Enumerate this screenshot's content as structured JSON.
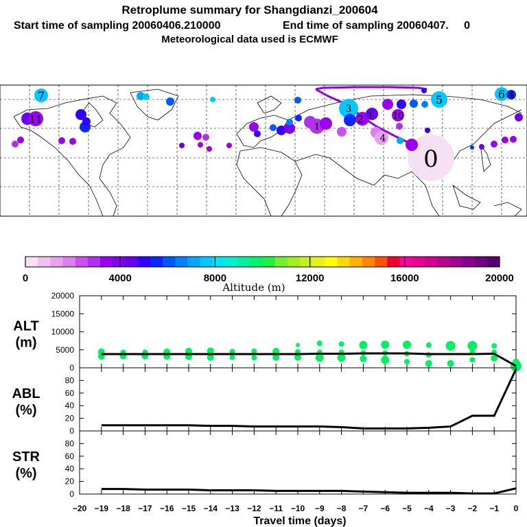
{
  "header": {
    "title": "Retroplume summary for Shangdianzi_200604",
    "line2_start": "Start time of sampling 20060406.210000",
    "line2_end": "End time of sampling 20060407.     0",
    "line3": "Meteorological data used is ECMWF"
  },
  "colorbar": {
    "label": "Altitude (m)",
    "ticks": [
      "0",
      "4000",
      "8000",
      "12000",
      "16000",
      "20000"
    ],
    "colors": [
      "#f7e0f7",
      "#f0c0f0",
      "#e8a0f0",
      "#dc80f0",
      "#cc50f0",
      "#b030f0",
      "#9a00f0",
      "#8000f0",
      "#6a00f0",
      "#3200ff",
      "#0a28ff",
      "#0058ff",
      "#0080ff",
      "#00a8ff",
      "#00c8ff",
      "#00e6f0",
      "#00f0d0",
      "#00f0a0",
      "#00f070",
      "#20f040",
      "#70f030",
      "#a0f020",
      "#c8f020",
      "#e8f020",
      "#ffff00",
      "#ffd800",
      "#ffb000",
      "#ff8800",
      "#ff5000",
      "#f00030",
      "#ff00a0",
      "#e80090",
      "#d00090",
      "#b80090",
      "#a00090",
      "#880090",
      "#700080",
      "#580070"
    ]
  },
  "map": {
    "labels": [
      "7",
      "6",
      "4",
      "5",
      "2",
      "3",
      "10",
      "1",
      "4",
      "0",
      "1",
      "11"
    ]
  },
  "chart_data": [
    {
      "type": "scatter",
      "panel": "ALT",
      "ylabel_lines": [
        "ALT",
        "(m)"
      ],
      "ylim": [
        0,
        20000
      ],
      "yticks": [
        "20000",
        "15000",
        "10000",
        "5000",
        "0"
      ],
      "median_line": {
        "x": [
          -19,
          -18,
          -17,
          -16,
          -15,
          -14,
          -13,
          -12,
          -11,
          -10,
          -9,
          -8,
          -7,
          -6,
          -5,
          -4,
          -3,
          -2,
          -1,
          0
        ],
        "y": [
          3800,
          3800,
          3800,
          3800,
          3800,
          3800,
          3800,
          3800,
          3800,
          3800,
          3900,
          3900,
          4000,
          4000,
          4000,
          3800,
          3800,
          3800,
          3900,
          500
        ]
      },
      "points": [
        {
          "x": -19,
          "y": 3200,
          "s": 5
        },
        {
          "x": -19,
          "y": 4400,
          "s": 5
        },
        {
          "x": -18,
          "y": 3300,
          "s": 5
        },
        {
          "x": -18,
          "y": 4300,
          "s": 4
        },
        {
          "x": -17,
          "y": 3300,
          "s": 5
        },
        {
          "x": -17,
          "y": 4300,
          "s": 4
        },
        {
          "x": -16,
          "y": 3200,
          "s": 5
        },
        {
          "x": -16,
          "y": 4400,
          "s": 5
        },
        {
          "x": -15,
          "y": 3100,
          "s": 5
        },
        {
          "x": -15,
          "y": 4600,
          "s": 5
        },
        {
          "x": -14,
          "y": 2900,
          "s": 5
        },
        {
          "x": -14,
          "y": 4700,
          "s": 5
        },
        {
          "x": -13,
          "y": 2900,
          "s": 4
        },
        {
          "x": -13,
          "y": 4500,
          "s": 4
        },
        {
          "x": -12,
          "y": 2800,
          "s": 4
        },
        {
          "x": -12,
          "y": 4600,
          "s": 4
        },
        {
          "x": -11,
          "y": 2900,
          "s": 5
        },
        {
          "x": -11,
          "y": 4600,
          "s": 5
        },
        {
          "x": -10,
          "y": 2900,
          "s": 5
        },
        {
          "x": -10,
          "y": 4400,
          "s": 4
        },
        {
          "x": -10,
          "y": 6300,
          "s": 3
        },
        {
          "x": -9,
          "y": 2800,
          "s": 6
        },
        {
          "x": -9,
          "y": 4300,
          "s": 4
        },
        {
          "x": -9,
          "y": 6800,
          "s": 4
        },
        {
          "x": -8,
          "y": 2800,
          "s": 6
        },
        {
          "x": -8,
          "y": 4300,
          "s": 4
        },
        {
          "x": -8,
          "y": 6600,
          "s": 4
        },
        {
          "x": -7,
          "y": 2500,
          "s": 5
        },
        {
          "x": -7,
          "y": 4100,
          "s": 4
        },
        {
          "x": -7,
          "y": 6300,
          "s": 6
        },
        {
          "x": -6,
          "y": 2200,
          "s": 6
        },
        {
          "x": -6,
          "y": 4100,
          "s": 4
        },
        {
          "x": -6,
          "y": 6400,
          "s": 6
        },
        {
          "x": -5,
          "y": 1700,
          "s": 4
        },
        {
          "x": -5,
          "y": 3900,
          "s": 4
        },
        {
          "x": -5,
          "y": 6400,
          "s": 6
        },
        {
          "x": -4,
          "y": 1200,
          "s": 5
        },
        {
          "x": -4,
          "y": 3600,
          "s": 4
        },
        {
          "x": -4,
          "y": 6300,
          "s": 4
        },
        {
          "x": -3,
          "y": 1200,
          "s": 5
        },
        {
          "x": -3,
          "y": 6100,
          "s": 7
        },
        {
          "x": -2,
          "y": 2200,
          "s": 4
        },
        {
          "x": -2,
          "y": 4300,
          "s": 4
        },
        {
          "x": -2,
          "y": 6100,
          "s": 7
        },
        {
          "x": -1,
          "y": 2700,
          "s": 5
        },
        {
          "x": -1,
          "y": 4300,
          "s": 4
        },
        {
          "x": -1,
          "y": 6100,
          "s": 4
        },
        {
          "x": 0,
          "y": 500,
          "s": 8
        },
        {
          "x": 0,
          "y": 1600,
          "s": 5
        }
      ]
    },
    {
      "type": "line",
      "panel": "ABL",
      "ylabel_lines": [
        "ABL",
        "(%)"
      ],
      "ylim": [
        0,
        100
      ],
      "yticks": [
        "80",
        "60",
        "40",
        "20",
        "0"
      ],
      "x": [
        -19,
        -18,
        -17,
        -16,
        -15,
        -14,
        -13,
        -12,
        -11,
        -10,
        -9,
        -8,
        -7,
        -6,
        -5,
        -4,
        -3,
        -2,
        -1,
        0
      ],
      "y": [
        9,
        9,
        9,
        9,
        9,
        8,
        8,
        7,
        7,
        7,
        7,
        6,
        4,
        4,
        4,
        5,
        7,
        24,
        24,
        98
      ]
    },
    {
      "type": "line",
      "panel": "STR",
      "ylabel_lines": [
        "STR",
        "(%)"
      ],
      "ylim": [
        0,
        100
      ],
      "yticks": [
        "80",
        "60",
        "40",
        "20",
        "0"
      ],
      "x": [
        -19,
        -18,
        -17,
        -16,
        -15,
        -14,
        -13,
        -12,
        -11,
        -10,
        -9,
        -8,
        -7,
        -6,
        -5,
        -4,
        -3,
        -2,
        -1,
        0
      ],
      "y": [
        8,
        8,
        7,
        7,
        7,
        6,
        6,
        6,
        5,
        5,
        5,
        5,
        4,
        3,
        2,
        2,
        2,
        1,
        1,
        9
      ]
    }
  ],
  "xaxis": {
    "label": "Travel time (days)",
    "ticks": [
      "-20",
      "-19",
      "-18",
      "-17",
      "-16",
      "-15",
      "-14",
      "-13",
      "-12",
      "-11",
      "-10",
      "-9",
      "-8",
      "-7",
      "-6",
      "-5",
      "-4",
      "-3",
      "-2",
      "-1",
      "0"
    ]
  },
  "style": {
    "point_color": "#00f060",
    "line_color": "#000000",
    "trajectory_color": "#8a00f0"
  }
}
